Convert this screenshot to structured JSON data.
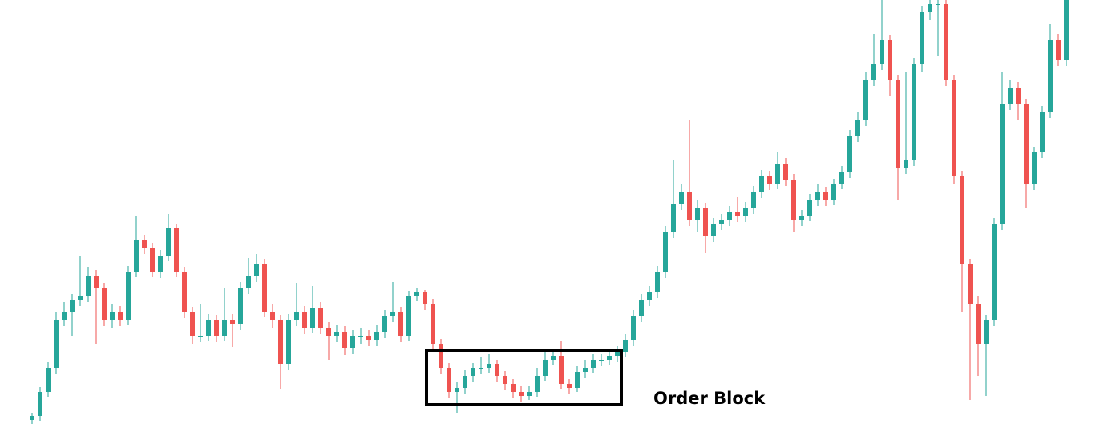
{
  "chart_data": {
    "type": "candlestick",
    "annotation": "Order Block",
    "up_color": "#26a69a",
    "down_color": "#ef5350",
    "ylim": [
      0,
      530
    ],
    "open": [
      5,
      10,
      40,
      70,
      130,
      140,
      155,
      160,
      185,
      170,
      130,
      140,
      130,
      190,
      230,
      220,
      190,
      210,
      245,
      190,
      140,
      110,
      110,
      130,
      110,
      130,
      125,
      170,
      185,
      200,
      140,
      130,
      75,
      130,
      140,
      120,
      145,
      120,
      110,
      115,
      95,
      110,
      110,
      105,
      115,
      135,
      140,
      110,
      160,
      165,
      150,
      100,
      70,
      40,
      45,
      60,
      70,
      70,
      75,
      60,
      50,
      40,
      35,
      40,
      60,
      80,
      85,
      50,
      45,
      65,
      70,
      80,
      80,
      85,
      90,
      105,
      135,
      155,
      165,
      190,
      240,
      275,
      290,
      255,
      270,
      235,
      250,
      255,
      265,
      260,
      270,
      290,
      310,
      300,
      325,
      305,
      255,
      260,
      280,
      290,
      280,
      300,
      315,
      360,
      380,
      430,
      450,
      480,
      430,
      320,
      330,
      450,
      515,
      525,
      525,
      430,
      310,
      200,
      150,
      100,
      130,
      250,
      400,
      420,
      400,
      300,
      340,
      390,
      480,
      455
    ],
    "high": [
      14,
      46,
      78,
      140,
      152,
      162,
      210,
      196,
      192,
      176,
      150,
      148,
      198,
      260,
      236,
      226,
      218,
      262,
      250,
      196,
      146,
      150,
      138,
      136,
      170,
      138,
      178,
      208,
      212,
      206,
      150,
      136,
      138,
      176,
      148,
      172,
      152,
      128,
      124,
      122,
      118,
      120,
      118,
      124,
      142,
      178,
      146,
      166,
      170,
      168,
      156,
      106,
      76,
      52,
      68,
      76,
      84,
      88,
      80,
      66,
      56,
      48,
      48,
      70,
      94,
      92,
      104,
      56,
      72,
      80,
      88,
      88,
      92,
      98,
      112,
      142,
      162,
      172,
      198,
      248,
      330,
      300,
      380,
      280,
      276,
      258,
      262,
      272,
      284,
      278,
      298,
      318,
      316,
      340,
      332,
      312,
      268,
      288,
      300,
      296,
      306,
      322,
      368,
      390,
      440,
      488,
      530,
      486,
      436,
      440,
      458,
      522,
      530,
      530,
      530,
      436,
      316,
      206,
      160,
      136,
      258,
      440,
      430,
      428,
      406,
      346,
      398,
      500,
      488,
      530
    ],
    "low": [
      0,
      4,
      34,
      62,
      122,
      110,
      148,
      152,
      100,
      122,
      120,
      122,
      124,
      184,
      212,
      184,
      182,
      204,
      184,
      132,
      100,
      102,
      104,
      102,
      104,
      96,
      118,
      162,
      178,
      134,
      120,
      44,
      68,
      122,
      112,
      114,
      112,
      80,
      102,
      86,
      88,
      100,
      98,
      98,
      108,
      128,
      102,
      104,
      154,
      142,
      94,
      62,
      32,
      14,
      38,
      52,
      62,
      64,
      52,
      42,
      32,
      28,
      30,
      34,
      54,
      74,
      44,
      38,
      40,
      58,
      64,
      72,
      74,
      78,
      84,
      98,
      128,
      148,
      158,
      182,
      232,
      268,
      248,
      240,
      214,
      228,
      242,
      248,
      252,
      252,
      262,
      282,
      292,
      294,
      298,
      240,
      248,
      254,
      272,
      272,
      274,
      294,
      308,
      352,
      372,
      422,
      442,
      410,
      280,
      312,
      322,
      440,
      505,
      460,
      422,
      300,
      140,
      30,
      60,
      35,
      122,
      242,
      392,
      380,
      270,
      292,
      332,
      382,
      448,
      448
    ],
    "close": [
      10,
      40,
      70,
      130,
      140,
      155,
      160,
      185,
      170,
      130,
      140,
      130,
      190,
      230,
      220,
      190,
      210,
      245,
      190,
      140,
      110,
      110,
      130,
      110,
      130,
      125,
      170,
      185,
      200,
      140,
      130,
      75,
      130,
      140,
      120,
      145,
      120,
      110,
      115,
      95,
      110,
      110,
      105,
      115,
      135,
      140,
      110,
      160,
      165,
      150,
      100,
      70,
      40,
      45,
      60,
      70,
      70,
      75,
      60,
      50,
      40,
      35,
      40,
      60,
      80,
      85,
      50,
      45,
      65,
      70,
      80,
      80,
      85,
      90,
      105,
      135,
      155,
      165,
      190,
      240,
      275,
      290,
      255,
      270,
      235,
      250,
      255,
      265,
      260,
      270,
      290,
      310,
      300,
      325,
      305,
      255,
      260,
      280,
      290,
      280,
      300,
      315,
      360,
      380,
      430,
      450,
      480,
      430,
      320,
      330,
      450,
      515,
      525,
      525,
      430,
      310,
      200,
      150,
      100,
      130,
      250,
      400,
      420,
      400,
      300,
      340,
      390,
      480,
      455,
      530
    ]
  }
}
